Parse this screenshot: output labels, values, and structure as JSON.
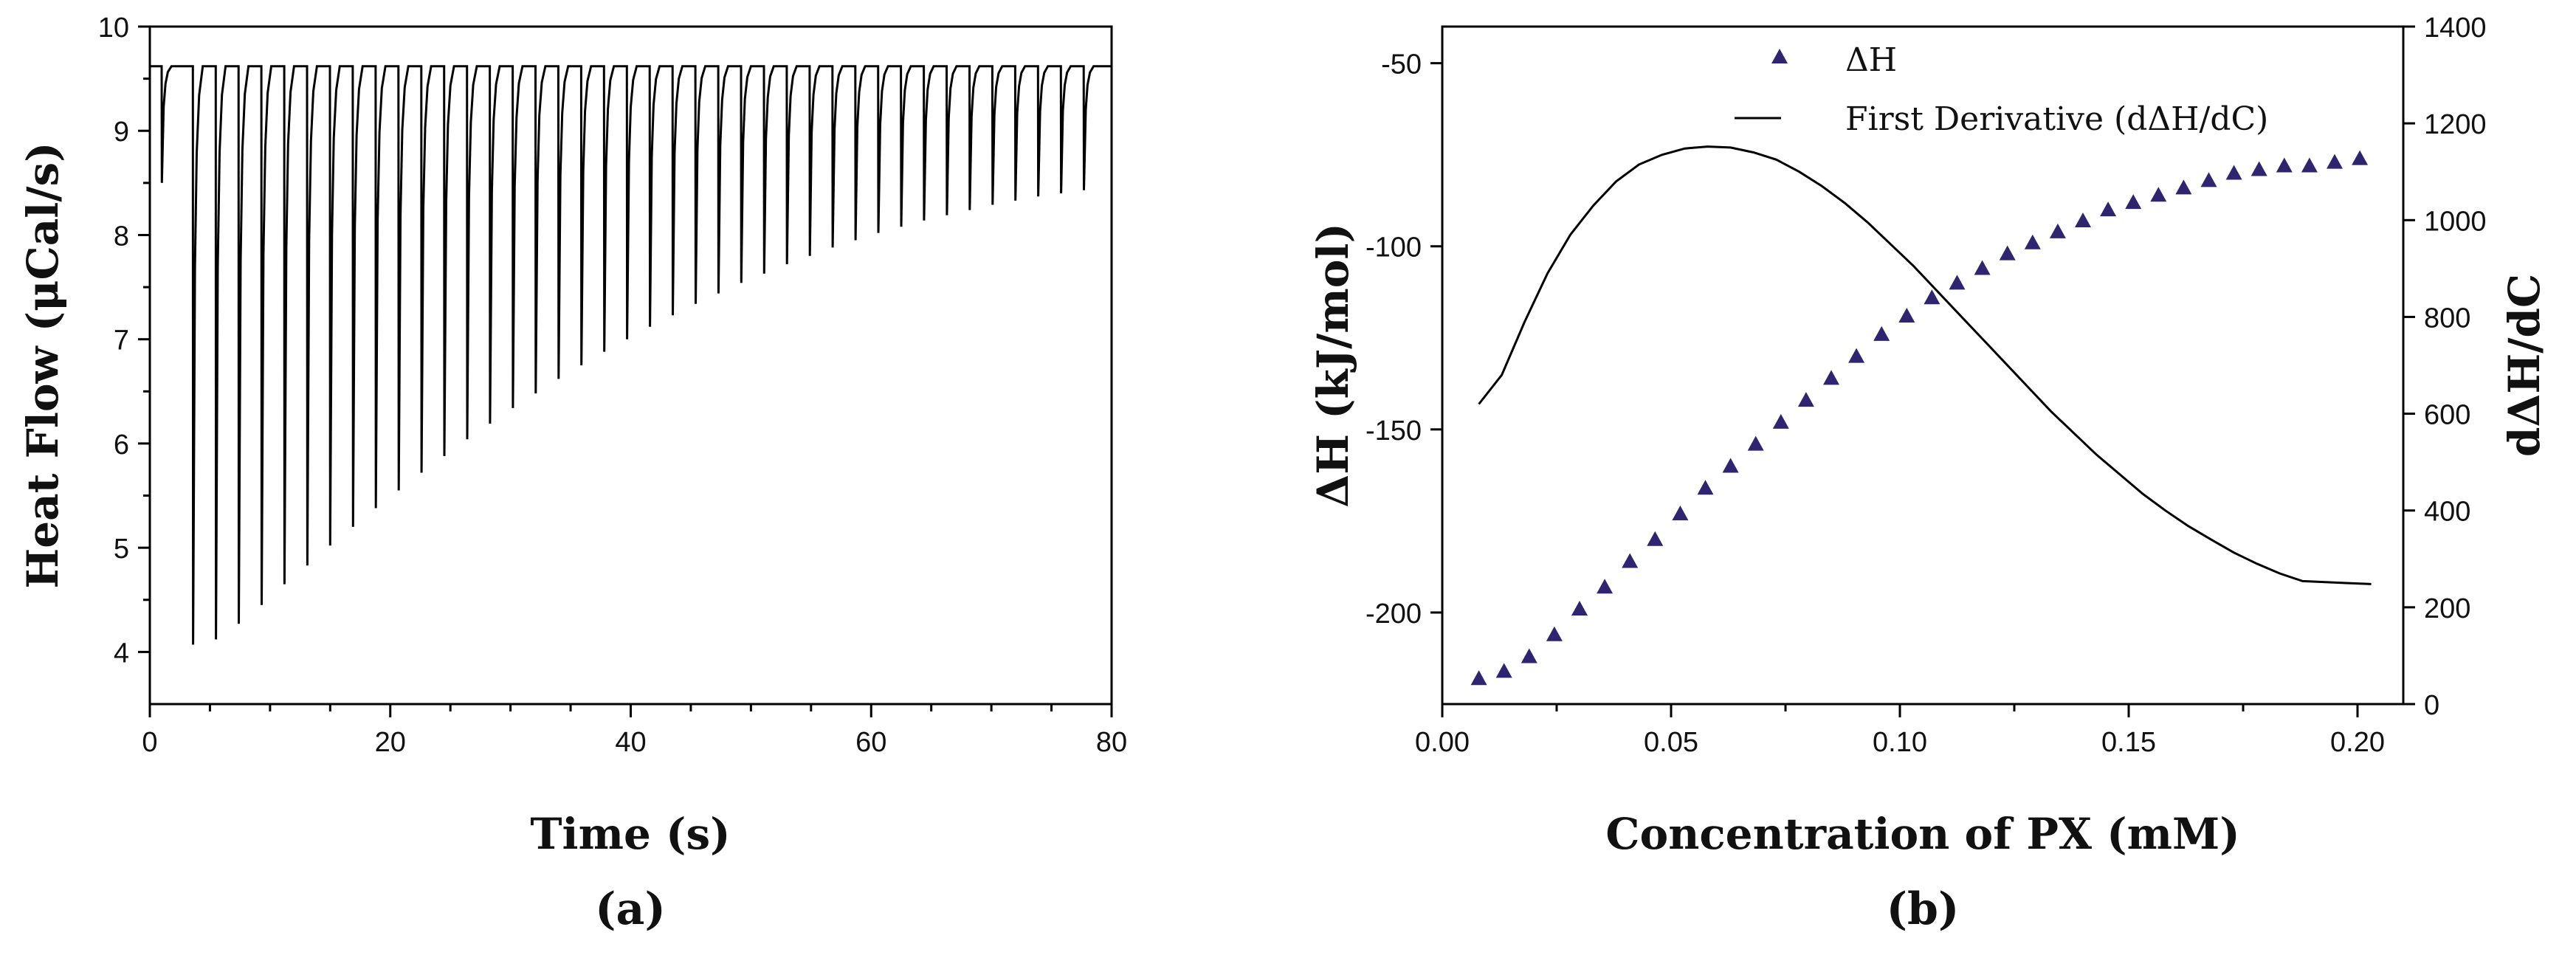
{
  "chart_data": [
    {
      "type": "line",
      "panel_label": "(a)",
      "title": "",
      "xlabel": "Time (s)",
      "ylabel": "Heat Flow (μCal/s)",
      "xlim": [
        0,
        80
      ],
      "ylim": [
        3.5,
        10
      ],
      "x_ticks": [
        0,
        20,
        40,
        60,
        80
      ],
      "y_ticks": [
        4,
        5,
        6,
        7,
        8,
        9,
        10
      ],
      "baseline": 9.62,
      "series": [
        {
          "name": "Heat Flow",
          "injection_times": [
            1,
            3.6,
            5.5,
            7.4,
            9.3,
            11.2,
            13.1,
            15.0,
            16.9,
            18.8,
            20.7,
            22.6,
            24.5,
            26.4,
            28.3,
            30.2,
            32.1,
            34.0,
            35.9,
            37.8,
            39.7,
            41.6,
            43.5,
            45.4,
            47.3,
            49.2,
            51.1,
            53.0,
            54.9,
            56.8,
            58.7,
            60.6,
            62.5,
            64.4,
            66.3,
            68.2,
            70.1,
            72.0,
            73.9,
            75.8,
            77.7
          ],
          "peak_minima": [
            8.5,
            4.07,
            4.12,
            4.27,
            4.45,
            4.65,
            4.83,
            5.02,
            5.2,
            5.38,
            5.55,
            5.72,
            5.88,
            6.04,
            6.19,
            6.34,
            6.48,
            6.62,
            6.75,
            6.88,
            7.0,
            7.12,
            7.23,
            7.34,
            7.44,
            7.54,
            7.63,
            7.72,
            7.8,
            7.88,
            7.95,
            8.02,
            8.08,
            8.14,
            8.19,
            8.24,
            8.29,
            8.33,
            8.37,
            8.4,
            8.43
          ]
        }
      ]
    },
    {
      "type": "scatter+line",
      "panel_label": "(b)",
      "title": "",
      "xlabel": "Concentration of PX (mM)",
      "ylabel": "ΔH (kJ/mol)",
      "y2label": "dΔH/dC",
      "xlim": [
        0.0,
        0.21
      ],
      "ylim": [
        -225,
        -40
      ],
      "y2lim": [
        0,
        1400
      ],
      "x_ticks": [
        "0.00",
        "0.05",
        "0.10",
        "0.15",
        "0.20"
      ],
      "y_ticks": [
        -50,
        -100,
        -150,
        -200
      ],
      "y2_ticks": [
        0,
        200,
        400,
        600,
        800,
        1000,
        1200,
        1400
      ],
      "legend": [
        "ΔH",
        "First Derivative (dΔH/dC)"
      ],
      "legend_position": "top-center",
      "series": [
        {
          "name": "ΔH",
          "axis": "left",
          "marker": "triangle",
          "color": "#2e2470",
          "x": [
            0.008,
            0.0135,
            0.019,
            0.0245,
            0.03,
            0.0355,
            0.041,
            0.0465,
            0.052,
            0.0575,
            0.063,
            0.0685,
            0.074,
            0.0795,
            0.085,
            0.0905,
            0.096,
            0.1015,
            0.107,
            0.1125,
            0.118,
            0.1235,
            0.129,
            0.1345,
            0.14,
            0.1455,
            0.151,
            0.1565,
            0.162,
            0.1675,
            0.173,
            0.1785,
            0.184,
            0.1895,
            0.195,
            0.2005
          ],
          "y": [
            -218,
            -216,
            -212,
            -206,
            -199,
            -193,
            -186,
            -180,
            -173,
            -166,
            -160,
            -154,
            -148,
            -142,
            -136,
            -130,
            -124,
            -119,
            -114,
            -110,
            -106,
            -102,
            -99,
            -96,
            -93,
            -90,
            -88,
            -86,
            -84,
            -82,
            -80,
            -79,
            -78,
            -78,
            -77,
            -76
          ]
        },
        {
          "name": "First Derivative (dΔH/dC)",
          "axis": "right",
          "color": "#000000",
          "x": [
            0.008,
            0.013,
            0.018,
            0.023,
            0.028,
            0.033,
            0.038,
            0.043,
            0.048,
            0.053,
            0.058,
            0.063,
            0.068,
            0.073,
            0.078,
            0.083,
            0.088,
            0.093,
            0.098,
            0.103,
            0.108,
            0.113,
            0.118,
            0.123,
            0.128,
            0.133,
            0.138,
            0.143,
            0.148,
            0.153,
            0.158,
            0.163,
            0.168,
            0.173,
            0.178,
            0.183,
            0.188,
            0.193,
            0.198,
            0.203
          ],
          "y": [
            620,
            680,
            790,
            890,
            970,
            1030,
            1080,
            1115,
            1135,
            1148,
            1152,
            1150,
            1140,
            1125,
            1100,
            1070,
            1035,
            995,
            950,
            905,
            855,
            805,
            755,
            705,
            655,
            605,
            560,
            515,
            475,
            435,
            400,
            368,
            340,
            313,
            290,
            270,
            254,
            252,
            250,
            248
          ]
        }
      ]
    }
  ]
}
